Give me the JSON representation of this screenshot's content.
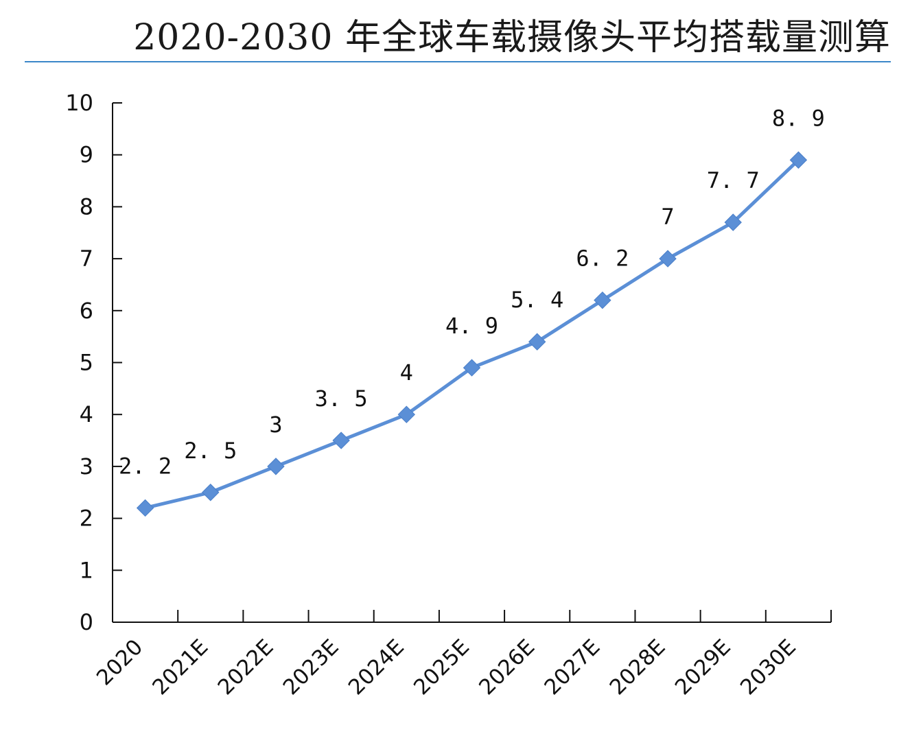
{
  "chart_data": {
    "type": "line",
    "title": "2020-2030 年全球车载摄像头平均搭载量测算",
    "categories": [
      "2020",
      "2021E",
      "2022E",
      "2023E",
      "2024E",
      "2025E",
      "2026E",
      "2027E",
      "2028E",
      "2029E",
      "2030E"
    ],
    "series": [
      {
        "values": [
          2.2,
          2.5,
          3,
          3.5,
          4,
          4.9,
          5.4,
          6.2,
          7,
          7.7,
          8.9
        ],
        "data_labels": [
          "2. 2",
          "2. 5",
          "3",
          "3. 5",
          "4",
          "4. 9",
          "5. 4",
          "6. 2",
          "7",
          "7. 7",
          "8. 9"
        ]
      }
    ],
    "yticks": [
      "0",
      "1",
      "2",
      "3",
      "4",
      "5",
      "6",
      "7",
      "8",
      "9",
      "10"
    ],
    "ylim": [
      0,
      10
    ],
    "xlabel": "",
    "ylabel": "",
    "grid": false,
    "legend": "none",
    "colors": {
      "series": "#5b8fd6",
      "axis": "#111111",
      "title_rule": "#3a86c8"
    }
  }
}
